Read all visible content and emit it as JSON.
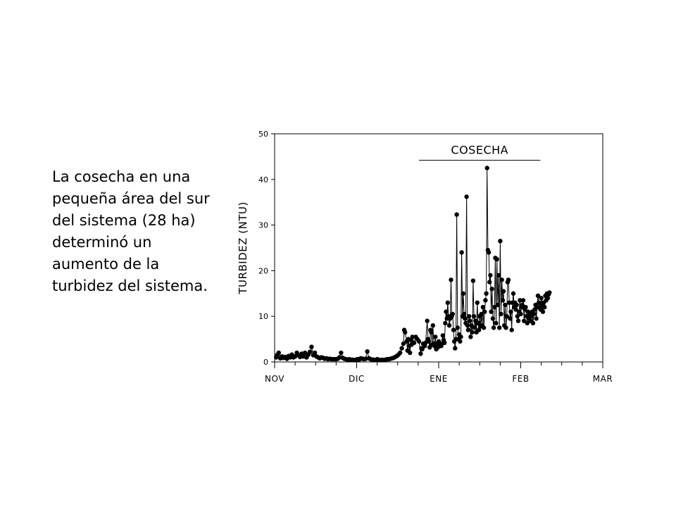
{
  "slide": {
    "caption": "La cosecha en una pequeña área del sur del sistema (28 ha) determinó un aumento de la turbidez del sistema."
  },
  "chart_data": {
    "type": "scatter",
    "line_connected": true,
    "title": "",
    "ylabel": "TURBIDEZ (NTU)",
    "xlabel": "",
    "ylim": [
      0,
      50
    ],
    "yticks": [
      0,
      10,
      20,
      30,
      40,
      50
    ],
    "xlim": [
      0,
      4
    ],
    "month_ticks": [
      {
        "x": 0,
        "label": "NOV"
      },
      {
        "x": 1,
        "label": "DIC"
      },
      {
        "x": 2,
        "label": "ENE"
      },
      {
        "x": 3,
        "label": "FEB"
      },
      {
        "x": 4,
        "label": "MAR"
      }
    ],
    "annotations": [
      {
        "label": "COSECHA",
        "x_start": 1.76,
        "x_end": 3.24,
        "y": 44.2
      }
    ],
    "colors": {
      "points": "#000000",
      "line": "#000000"
    },
    "grid": false,
    "series": [
      {
        "points": [
          [
            0.02,
            1.0
          ],
          [
            0.03,
            1.5
          ],
          [
            0.05,
            2.0
          ],
          [
            0.07,
            0.8
          ],
          [
            0.09,
            1.2
          ],
          [
            0.11,
            0.9
          ],
          [
            0.13,
            1.1
          ],
          [
            0.15,
            0.7
          ],
          [
            0.17,
            1.3
          ],
          [
            0.19,
            1.0
          ],
          [
            0.21,
            1.6
          ],
          [
            0.23,
            1.0
          ],
          [
            0.25,
            1.2
          ],
          [
            0.27,
            2.0
          ],
          [
            0.29,
            1.5
          ],
          [
            0.31,
            1.1
          ],
          [
            0.33,
            1.8
          ],
          [
            0.35,
            1.2
          ],
          [
            0.37,
            2.0
          ],
          [
            0.39,
            1.0
          ],
          [
            0.41,
            1.6
          ],
          [
            0.43,
            2.2
          ],
          [
            0.45,
            3.3
          ],
          [
            0.47,
            1.5
          ],
          [
            0.49,
            2.0
          ],
          [
            0.51,
            1.2
          ],
          [
            0.53,
            1.0
          ],
          [
            0.55,
            0.8
          ],
          [
            0.57,
            1.0
          ],
          [
            0.59,
            0.9
          ],
          [
            0.61,
            0.7
          ],
          [
            0.63,
            0.8
          ],
          [
            0.65,
            0.6
          ],
          [
            0.67,
            0.7
          ],
          [
            0.69,
            0.6
          ],
          [
            0.71,
            0.6
          ],
          [
            0.73,
            0.6
          ],
          [
            0.75,
            0.6
          ],
          [
            0.77,
            0.7
          ],
          [
            0.79,
            1.0
          ],
          [
            0.81,
            2.0
          ],
          [
            0.83,
            0.9
          ],
          [
            0.85,
            0.7
          ],
          [
            0.87,
            0.6
          ],
          [
            0.89,
            0.5
          ],
          [
            0.91,
            0.6
          ],
          [
            0.93,
            0.5
          ],
          [
            0.95,
            0.5
          ],
          [
            0.97,
            0.4
          ],
          [
            0.99,
            0.5
          ],
          [
            1.01,
            0.6
          ],
          [
            1.03,
            0.5
          ],
          [
            1.05,
            0.8
          ],
          [
            1.07,
            0.7
          ],
          [
            1.09,
            0.6
          ],
          [
            1.11,
            0.7
          ],
          [
            1.13,
            2.3
          ],
          [
            1.15,
            0.8
          ],
          [
            1.17,
            0.6
          ],
          [
            1.19,
            0.5
          ],
          [
            1.21,
            0.5
          ],
          [
            1.23,
            0.4
          ],
          [
            1.25,
            0.6
          ],
          [
            1.27,
            0.5
          ],
          [
            1.29,
            0.4
          ],
          [
            1.31,
            0.5
          ],
          [
            1.33,
            0.4
          ],
          [
            1.35,
            0.5
          ],
          [
            1.37,
            0.6
          ],
          [
            1.39,
            0.6
          ],
          [
            1.41,
            0.7
          ],
          [
            1.43,
            0.8
          ],
          [
            1.45,
            0.9
          ],
          [
            1.47,
            1.1
          ],
          [
            1.49,
            1.3
          ],
          [
            1.51,
            1.6
          ],
          [
            1.53,
            2.0
          ],
          [
            1.55,
            3.0
          ],
          [
            1.57,
            4.0
          ],
          [
            1.58,
            7.0
          ],
          [
            1.59,
            6.5
          ],
          [
            1.61,
            4.5
          ],
          [
            1.62,
            2.5
          ],
          [
            1.63,
            5.0
          ],
          [
            1.64,
            3.5
          ],
          [
            1.65,
            2.0
          ],
          [
            1.66,
            4.8
          ],
          [
            1.67,
            3.8
          ],
          [
            1.68,
            5.5
          ],
          [
            1.7,
            4.2
          ],
          [
            1.72,
            5.5
          ],
          [
            1.74,
            5.0
          ],
          [
            1.76,
            4.5
          ],
          [
            1.78,
            1.8
          ],
          [
            1.79,
            3.0
          ],
          [
            1.8,
            2.8
          ],
          [
            1.81,
            4.0
          ],
          [
            1.83,
            3.5
          ],
          [
            1.84,
            4.2
          ],
          [
            1.86,
            9.0
          ],
          [
            1.87,
            5.0
          ],
          [
            1.88,
            4.5
          ],
          [
            1.89,
            3.2
          ],
          [
            1.9,
            7.0
          ],
          [
            1.91,
            6.5
          ],
          [
            1.92,
            3.8
          ],
          [
            1.93,
            8.0
          ],
          [
            1.94,
            4.0
          ],
          [
            1.95,
            3.5
          ],
          [
            1.96,
            5.5
          ],
          [
            1.97,
            2.8
          ],
          [
            1.98,
            4.0
          ],
          [
            1.99,
            3.2
          ],
          [
            2.0,
            4.5
          ],
          [
            2.01,
            3.5
          ],
          [
            2.02,
            3.8
          ],
          [
            2.03,
            3.5
          ],
          [
            2.04,
            4.0
          ],
          [
            2.05,
            5.8
          ],
          [
            2.06,
            4.8
          ],
          [
            2.07,
            4.2
          ],
          [
            2.08,
            8.5
          ],
          [
            2.09,
            11.0
          ],
          [
            2.1,
            9.5
          ],
          [
            2.11,
            13.0
          ],
          [
            2.12,
            10.0
          ],
          [
            2.13,
            8.0
          ],
          [
            2.14,
            9.5
          ],
          [
            2.15,
            18.0
          ],
          [
            2.16,
            10.0
          ],
          [
            2.17,
            10.5
          ],
          [
            2.18,
            7.0
          ],
          [
            2.19,
            4.5
          ],
          [
            2.2,
            3.0
          ],
          [
            2.21,
            5.0
          ],
          [
            2.22,
            32.3
          ],
          [
            2.23,
            7.5
          ],
          [
            2.24,
            5.0
          ],
          [
            2.25,
            6.0
          ],
          [
            2.26,
            4.5
          ],
          [
            2.27,
            5.5
          ],
          [
            2.28,
            24.0
          ],
          [
            2.29,
            10.0
          ],
          [
            2.3,
            15.0
          ],
          [
            2.31,
            10.5
          ],
          [
            2.32,
            9.5
          ],
          [
            2.33,
            8.5
          ],
          [
            2.34,
            36.2
          ],
          [
            2.35,
            8.0
          ],
          [
            2.36,
            7.0
          ],
          [
            2.37,
            10.0
          ],
          [
            2.38,
            9.0
          ],
          [
            2.39,
            5.5
          ],
          [
            2.4,
            8.0
          ],
          [
            2.41,
            6.5
          ],
          [
            2.42,
            17.8
          ],
          [
            2.43,
            10.0
          ],
          [
            2.44,
            7.5
          ],
          [
            2.45,
            9.0
          ],
          [
            2.46,
            6.5
          ],
          [
            2.47,
            13.0
          ],
          [
            2.48,
            8.5
          ],
          [
            2.49,
            7.0
          ],
          [
            2.5,
            10.0
          ],
          [
            2.51,
            7.8
          ],
          [
            2.52,
            10.5
          ],
          [
            2.53,
            8.0
          ],
          [
            2.54,
            12.0
          ],
          [
            2.55,
            7.5
          ],
          [
            2.56,
            11.0
          ],
          [
            2.57,
            13.5
          ],
          [
            2.58,
            15.0
          ],
          [
            2.59,
            42.5
          ],
          [
            2.6,
            24.5
          ],
          [
            2.61,
            24.0
          ],
          [
            2.62,
            17.5
          ],
          [
            2.63,
            19.0
          ],
          [
            2.64,
            11.0
          ],
          [
            2.65,
            16.0
          ],
          [
            2.66,
            9.5
          ],
          [
            2.67,
            7.5
          ],
          [
            2.68,
            12.0
          ],
          [
            2.69,
            22.8
          ],
          [
            2.7,
            8.5
          ],
          [
            2.71,
            22.5
          ],
          [
            2.72,
            12.5
          ],
          [
            2.73,
            19.0
          ],
          [
            2.74,
            7.5
          ],
          [
            2.75,
            26.5
          ],
          [
            2.76,
            10.5
          ],
          [
            2.77,
            18.0
          ],
          [
            2.78,
            13.5
          ],
          [
            2.79,
            15.5
          ],
          [
            2.8,
            8.0
          ],
          [
            2.81,
            12.5
          ],
          [
            2.82,
            7.5
          ],
          [
            2.83,
            10.0
          ],
          [
            2.84,
            17.5
          ],
          [
            2.85,
            18.0
          ],
          [
            2.86,
            13.0
          ],
          [
            2.87,
            9.5
          ],
          [
            2.88,
            11.0
          ],
          [
            2.89,
            7.0
          ],
          [
            2.9,
            13.0
          ],
          [
            2.91,
            15.0
          ],
          [
            2.92,
            12.0
          ],
          [
            2.93,
            13.0
          ],
          [
            2.94,
            11.5
          ],
          [
            2.95,
            12.5
          ],
          [
            2.96,
            10.0
          ],
          [
            2.97,
            9.0
          ],
          [
            2.98,
            11.0
          ],
          [
            2.99,
            13.5
          ],
          [
            3.0,
            10.5
          ],
          [
            3.01,
            12.0
          ],
          [
            3.02,
            12.5
          ],
          [
            3.03,
            13.5
          ],
          [
            3.04,
            9.0
          ],
          [
            3.05,
            11.5
          ],
          [
            3.06,
            12.0
          ],
          [
            3.07,
            10.0
          ],
          [
            3.08,
            8.5
          ],
          [
            3.09,
            11.0
          ],
          [
            3.1,
            9.5
          ],
          [
            3.11,
            10.5
          ],
          [
            3.12,
            9.0
          ],
          [
            3.13,
            10.0
          ],
          [
            3.14,
            11.0
          ],
          [
            3.15,
            8.5
          ],
          [
            3.16,
            10.5
          ],
          [
            3.17,
            11.5
          ],
          [
            3.18,
            12.5
          ],
          [
            3.19,
            9.5
          ],
          [
            3.2,
            12.0
          ],
          [
            3.21,
            14.5
          ],
          [
            3.22,
            13.0
          ],
          [
            3.23,
            12.0
          ],
          [
            3.24,
            11.5
          ],
          [
            3.25,
            14.0
          ],
          [
            3.26,
            12.5
          ],
          [
            3.27,
            11.0
          ],
          [
            3.28,
            13.0
          ],
          [
            3.29,
            12.0
          ],
          [
            3.3,
            14.5
          ],
          [
            3.31,
            13.5
          ],
          [
            3.32,
            15.0
          ],
          [
            3.33,
            14.0
          ],
          [
            3.34,
            14.8
          ],
          [
            3.35,
            15.2
          ]
        ]
      }
    ]
  }
}
